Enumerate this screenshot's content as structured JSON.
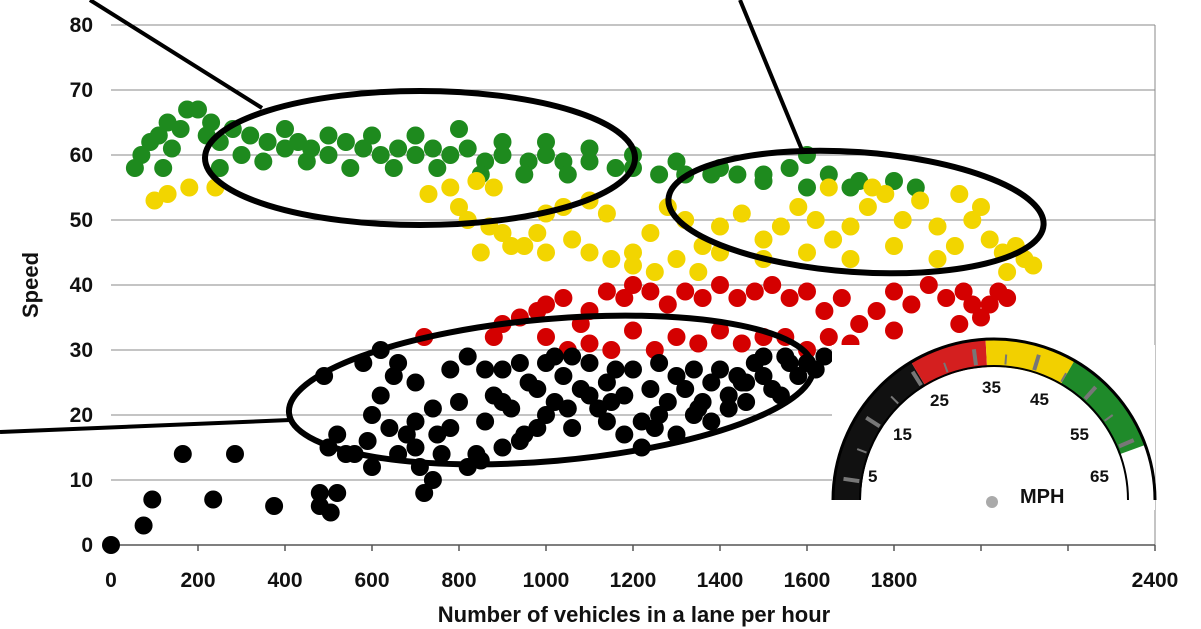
{
  "chart_data": {
    "type": "scatter",
    "xlabel": "Number of vehicles in a lane per hour",
    "ylabel": "Speed",
    "xlim": [
      0,
      2400
    ],
    "ylim": [
      0,
      80
    ],
    "x_ticks": [
      "0",
      "200",
      "400",
      "600",
      "800",
      "1000",
      "1200",
      "1400",
      "1600",
      "1800",
      "",
      "",
      "2400"
    ],
    "y_ticks": [
      "0",
      "10",
      "20",
      "30",
      "40",
      "50",
      "60",
      "70",
      "80"
    ],
    "grid": true,
    "series": [
      {
        "color": "#1e8a1e",
        "points": [
          [
            55,
            58
          ],
          [
            70,
            60
          ],
          [
            90,
            62
          ],
          [
            110,
            63
          ],
          [
            140,
            61
          ],
          [
            160,
            64
          ],
          [
            175,
            67
          ],
          [
            200,
            67
          ],
          [
            220,
            63
          ],
          [
            250,
            62
          ],
          [
            280,
            64
          ],
          [
            320,
            63
          ],
          [
            360,
            62
          ],
          [
            400,
            61
          ],
          [
            430,
            62
          ],
          [
            460,
            61
          ],
          [
            500,
            60
          ],
          [
            540,
            62
          ],
          [
            580,
            61
          ],
          [
            620,
            60
          ],
          [
            660,
            61
          ],
          [
            700,
            60
          ],
          [
            740,
            61
          ],
          [
            780,
            60
          ],
          [
            820,
            61
          ],
          [
            860,
            59
          ],
          [
            900,
            60
          ],
          [
            960,
            59
          ],
          [
            1000,
            60
          ],
          [
            1040,
            59
          ],
          [
            1100,
            59
          ],
          [
            1160,
            58
          ],
          [
            1200,
            58
          ],
          [
            1260,
            57
          ],
          [
            1320,
            57
          ],
          [
            1380,
            57
          ],
          [
            1440,
            57
          ],
          [
            1500,
            57
          ],
          [
            1560,
            58
          ],
          [
            1600,
            60
          ],
          [
            1650,
            57
          ],
          [
            1720,
            56
          ],
          [
            1800,
            56
          ],
          [
            1850,
            55
          ],
          [
            120,
            58
          ],
          [
            250,
            58
          ],
          [
            350,
            59
          ],
          [
            450,
            59
          ],
          [
            550,
            58
          ],
          [
            650,
            58
          ],
          [
            750,
            58
          ],
          [
            850,
            57
          ],
          [
            950,
            57
          ],
          [
            1050,
            57
          ],
          [
            130,
            65
          ],
          [
            230,
            65
          ],
          [
            300,
            60
          ],
          [
            400,
            64
          ],
          [
            500,
            63
          ],
          [
            600,
            63
          ],
          [
            700,
            63
          ],
          [
            800,
            64
          ],
          [
            900,
            62
          ],
          [
            1000,
            62
          ],
          [
            1100,
            61
          ],
          [
            1200,
            60
          ],
          [
            1300,
            59
          ],
          [
            1400,
            58
          ],
          [
            1500,
            56
          ],
          [
            1600,
            55
          ],
          [
            1700,
            55
          ]
        ]
      },
      {
        "color": "#f2d500",
        "points": [
          [
            100,
            53
          ],
          [
            130,
            54
          ],
          [
            180,
            55
          ],
          [
            240,
            55
          ],
          [
            730,
            54
          ],
          [
            780,
            55
          ],
          [
            800,
            52
          ],
          [
            840,
            56
          ],
          [
            880,
            55
          ],
          [
            820,
            50
          ],
          [
            870,
            49
          ],
          [
            900,
            48
          ],
          [
            950,
            46
          ],
          [
            980,
            48
          ],
          [
            1000,
            51
          ],
          [
            1040,
            52
          ],
          [
            1100,
            53
          ],
          [
            1140,
            51
          ],
          [
            1060,
            47
          ],
          [
            1150,
            44
          ],
          [
            1200,
            45
          ],
          [
            1240,
            48
          ],
          [
            1280,
            52
          ],
          [
            1320,
            50
          ],
          [
            1360,
            46
          ],
          [
            1400,
            49
          ],
          [
            1450,
            51
          ],
          [
            1500,
            47
          ],
          [
            1540,
            49
          ],
          [
            1580,
            52
          ],
          [
            1620,
            50
          ],
          [
            1660,
            47
          ],
          [
            1700,
            49
          ],
          [
            1740,
            52
          ],
          [
            1780,
            54
          ],
          [
            1820,
            50
          ],
          [
            1860,
            53
          ],
          [
            1900,
            49
          ],
          [
            1940,
            46
          ],
          [
            1980,
            50
          ],
          [
            2020,
            47
          ],
          [
            2050,
            45
          ],
          [
            2080,
            46
          ],
          [
            2100,
            44
          ],
          [
            2120,
            43
          ],
          [
            2060,
            42
          ],
          [
            1900,
            44
          ],
          [
            1800,
            46
          ],
          [
            1700,
            44
          ],
          [
            1600,
            45
          ],
          [
            1500,
            44
          ],
          [
            1400,
            45
          ],
          [
            1300,
            44
          ],
          [
            1200,
            43
          ],
          [
            1100,
            45
          ],
          [
            1000,
            45
          ],
          [
            920,
            46
          ],
          [
            850,
            45
          ],
          [
            1650,
            55
          ],
          [
            1750,
            55
          ],
          [
            1950,
            54
          ],
          [
            2000,
            52
          ],
          [
            1250,
            42
          ],
          [
            1350,
            42
          ]
        ]
      },
      {
        "color": "#d40000",
        "points": [
          [
            720,
            32
          ],
          [
            880,
            32
          ],
          [
            900,
            34
          ],
          [
            940,
            35
          ],
          [
            980,
            36
          ],
          [
            1000,
            37
          ],
          [
            1040,
            38
          ],
          [
            1080,
            34
          ],
          [
            1100,
            36
          ],
          [
            1140,
            39
          ],
          [
            1180,
            38
          ],
          [
            1200,
            40
          ],
          [
            1240,
            39
          ],
          [
            1280,
            37
          ],
          [
            1320,
            39
          ],
          [
            1360,
            38
          ],
          [
            1400,
            40
          ],
          [
            1440,
            38
          ],
          [
            1480,
            39
          ],
          [
            1520,
            40
          ],
          [
            1560,
            38
          ],
          [
            1600,
            39
          ],
          [
            1640,
            36
          ],
          [
            1680,
            38
          ],
          [
            1720,
            34
          ],
          [
            1760,
            36
          ],
          [
            1800,
            39
          ],
          [
            1840,
            37
          ],
          [
            1880,
            40
          ],
          [
            1920,
            38
          ],
          [
            1960,
            39
          ],
          [
            1980,
            37
          ],
          [
            2000,
            35
          ],
          [
            2020,
            37
          ],
          [
            2040,
            39
          ],
          [
            2060,
            38
          ],
          [
            1950,
            34
          ],
          [
            1800,
            33
          ],
          [
            1700,
            31
          ],
          [
            1650,
            32
          ],
          [
            1600,
            30
          ],
          [
            1500,
            32
          ],
          [
            1400,
            33
          ],
          [
            1300,
            32
          ],
          [
            1200,
            33
          ],
          [
            1100,
            31
          ],
          [
            1000,
            32
          ],
          [
            1050,
            30
          ],
          [
            1150,
            30
          ],
          [
            1250,
            30
          ],
          [
            1350,
            31
          ],
          [
            1450,
            31
          ],
          [
            1550,
            32
          ]
        ]
      },
      {
        "color": "#000000",
        "points": [
          [
            0,
            0
          ],
          [
            75,
            3
          ],
          [
            95,
            7
          ],
          [
            165,
            14
          ],
          [
            235,
            7
          ],
          [
            285,
            14
          ],
          [
            375,
            6
          ],
          [
            480,
            8
          ],
          [
            480,
            6
          ],
          [
            505,
            5
          ],
          [
            520,
            8
          ],
          [
            490,
            26
          ],
          [
            500,
            15
          ],
          [
            520,
            17
          ],
          [
            540,
            14
          ],
          [
            560,
            14
          ],
          [
            590,
            16
          ],
          [
            600,
            12
          ],
          [
            600,
            20
          ],
          [
            620,
            23
          ],
          [
            640,
            18
          ],
          [
            650,
            26
          ],
          [
            660,
            14
          ],
          [
            680,
            17
          ],
          [
            700,
            15
          ],
          [
            710,
            12
          ],
          [
            720,
            8
          ],
          [
            740,
            10
          ],
          [
            760,
            14
          ],
          [
            780,
            18
          ],
          [
            800,
            22
          ],
          [
            820,
            12
          ],
          [
            840,
            14
          ],
          [
            860,
            19
          ],
          [
            880,
            23
          ],
          [
            900,
            27
          ],
          [
            920,
            21
          ],
          [
            940,
            16
          ],
          [
            960,
            25
          ],
          [
            980,
            18
          ],
          [
            1000,
            28
          ],
          [
            1020,
            22
          ],
          [
            1040,
            26
          ],
          [
            1060,
            18
          ],
          [
            1080,
            24
          ],
          [
            1100,
            28
          ],
          [
            1120,
            21
          ],
          [
            1140,
            25
          ],
          [
            1160,
            27
          ],
          [
            1180,
            23
          ],
          [
            1200,
            27
          ],
          [
            1220,
            19
          ],
          [
            1240,
            24
          ],
          [
            1260,
            28
          ],
          [
            1280,
            22
          ],
          [
            1300,
            26
          ],
          [
            1320,
            24
          ],
          [
            1340,
            27
          ],
          [
            1360,
            22
          ],
          [
            1380,
            25
          ],
          [
            1400,
            27
          ],
          [
            1420,
            21
          ],
          [
            1440,
            26
          ],
          [
            1460,
            25
          ],
          [
            1480,
            28
          ],
          [
            1500,
            26
          ],
          [
            1520,
            24
          ],
          [
            1540,
            23
          ],
          [
            1560,
            28
          ],
          [
            1580,
            26
          ],
          [
            1600,
            28
          ],
          [
            1620,
            27
          ],
          [
            1640,
            29
          ],
          [
            1730,
            29
          ],
          [
            620,
            30
          ],
          [
            660,
            28
          ],
          [
            700,
            25
          ],
          [
            740,
            21
          ],
          [
            780,
            27
          ],
          [
            820,
            29
          ],
          [
            860,
            27
          ],
          [
            900,
            22
          ],
          [
            940,
            28
          ],
          [
            980,
            24
          ],
          [
            1020,
            29
          ],
          [
            1060,
            29
          ],
          [
            1100,
            23
          ],
          [
            1140,
            19
          ],
          [
            1180,
            17
          ],
          [
            1220,
            15
          ],
          [
            1260,
            20
          ],
          [
            1300,
            17
          ],
          [
            1340,
            20
          ],
          [
            1380,
            19
          ],
          [
            1420,
            23
          ],
          [
            1460,
            22
          ],
          [
            580,
            28
          ],
          [
            700,
            19
          ],
          [
            750,
            17
          ],
          [
            850,
            13
          ],
          [
            900,
            15
          ],
          [
            950,
            17
          ],
          [
            1000,
            20
          ],
          [
            1050,
            21
          ],
          [
            1150,
            22
          ],
          [
            1250,
            18
          ],
          [
            1350,
            21
          ],
          [
            1450,
            25
          ],
          [
            1500,
            29
          ],
          [
            1550,
            29
          ]
        ]
      }
    ],
    "gauge": {
      "labels": [
        "5",
        "15",
        "25",
        "35",
        "45",
        "55",
        "65"
      ],
      "unit": "MPH",
      "bands": [
        {
          "color": "#111111"
        },
        {
          "color": "#d41f1f"
        },
        {
          "color": "#f2d000"
        },
        {
          "color": "#1f8a2a"
        }
      ]
    }
  }
}
